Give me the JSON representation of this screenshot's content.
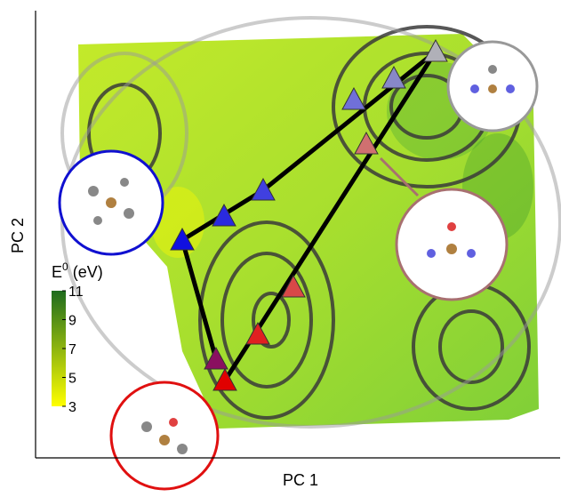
{
  "chart_data": {
    "type": "map",
    "xlabel": "PC 1",
    "ylabel": "PC 2",
    "colorbar": {
      "title_base": "E",
      "title_sup": "0",
      "title_unit": "(eV)",
      "lim": [
        3,
        11
      ],
      "ticks": [
        3,
        5,
        7,
        9,
        11
      ],
      "colors": [
        "#ffff00",
        "#1e6b1e"
      ]
    }
  }
}
